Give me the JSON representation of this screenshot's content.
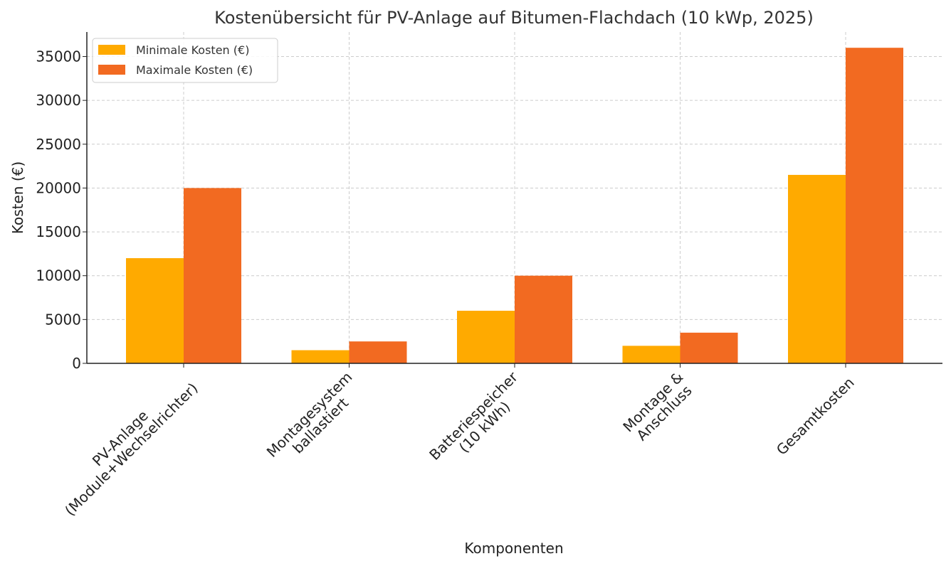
{
  "chart_data": {
    "type": "bar",
    "title": "Kostenübersicht für PV-Anlage auf Bitumen-Flachdach (10 kWp, 2025)",
    "xlabel": "Komponenten",
    "ylabel": "Kosten (€)",
    "ylim": [
      0,
      37800
    ],
    "yticks": [
      0,
      5000,
      10000,
      15000,
      20000,
      25000,
      30000,
      35000
    ],
    "grid": true,
    "legend_position": "top-left",
    "categories": [
      [
        "PV-Anlage",
        "(Module+Wechselrichter)"
      ],
      [
        "Montagesystem",
        "ballastiert"
      ],
      [
        "Batteriespeicher",
        "(10 kWh)"
      ],
      [
        "Montage &",
        "Anschluss"
      ],
      [
        "Gesamtkosten"
      ]
    ],
    "series": [
      {
        "name": "Minimale Kosten (€)",
        "color": "#FFAA00",
        "values": [
          12000,
          1500,
          6000,
          2000,
          21500
        ]
      },
      {
        "name": "Maximale Kosten (€)",
        "color": "#F26A21",
        "values": [
          20000,
          2500,
          10000,
          3500,
          36000
        ]
      }
    ]
  }
}
